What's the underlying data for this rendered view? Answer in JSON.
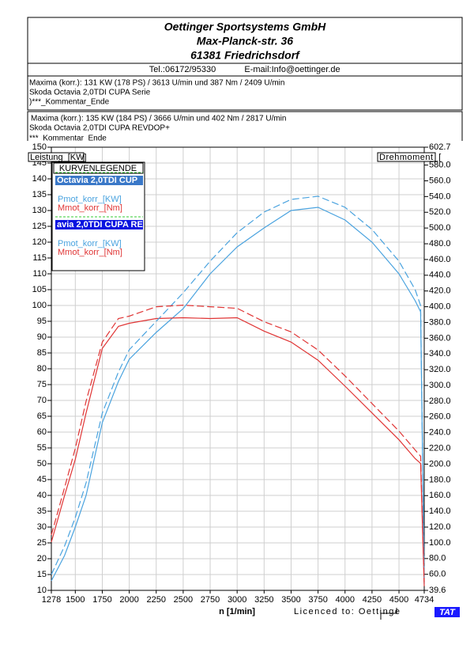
{
  "header": {
    "company": "Oettinger Sportsystems GmbH",
    "street": "Max-Planck-str. 36",
    "city": "61381 Friedrichsdorf",
    "phone": "Tel.:06172/95330",
    "email": "E-mail:Info@oettinger.de"
  },
  "runs": [
    {
      "maxima": "Maxima (korr.):  131 KW (178 PS) /  3613 U/min  und   387 Nm /  2409 U/min",
      "vehicle": "Skoda Octavia 2,0TDI CUPA Serie",
      "comment": ")***_Kommentar_Ende"
    },
    {
      "maxima": "Maxima (korr.):  135 KW (184 PS) /  3666 U/min  und   402 Nm /  2817 U/min",
      "vehicle": "Skoda Octavia 2,0TDI CUPA REVDOP+",
      "comment": "***_Kommentar_Ende"
    }
  ],
  "footer": {
    "licence": "Licenced to: Oettinge",
    "badge": "TAT"
  },
  "chart_data": {
    "type": "line",
    "y_label": "Leistung_[KW]",
    "y2_label": "Drehmoment_[",
    "x_label": "n  [1/min]",
    "legend_title": "KURVENLEGENDE",
    "x": [
      1278,
      1400,
      1500,
      1600,
      1750,
      1900,
      2000,
      2250,
      2500,
      2750,
      3000,
      3250,
      3500,
      3750,
      4000,
      4250,
      4500,
      4650,
      4700,
      4734
    ],
    "xlim": [
      1278,
      4734
    ],
    "xticks": [
      1278,
      1500,
      1750,
      2000,
      2250,
      2500,
      2750,
      3000,
      3250,
      3500,
      3750,
      4000,
      4250,
      4500,
      4734
    ],
    "ylim": [
      10,
      150
    ],
    "yticks": [
      10,
      15,
      20,
      25,
      30,
      35,
      40,
      45,
      50,
      55,
      60,
      65,
      70,
      75,
      80,
      85,
      90,
      95,
      100,
      105,
      110,
      115,
      120,
      125,
      130,
      135,
      140,
      145,
      150
    ],
    "y2lim": [
      39.6,
      602.7
    ],
    "y2ticks": [
      39.6,
      {
        "value": 60,
        "label": "60.0"
      },
      {
        "value": 80,
        "label": "80.0"
      },
      {
        "value": 100,
        "label": "100.0"
      },
      {
        "value": 120,
        "label": "120.0"
      },
      {
        "value": 140,
        "label": "140.0"
      },
      {
        "value": 160,
        "label": "160.0"
      },
      {
        "value": 180,
        "label": "180.0"
      },
      {
        "value": 200,
        "label": "200.0"
      },
      {
        "value": 220,
        "label": "220.0"
      },
      {
        "value": 240,
        "label": "240.0"
      },
      {
        "value": 260,
        "label": "260.0"
      },
      {
        "value": 280,
        "label": "280.0"
      },
      {
        "value": 300,
        "label": "300.0"
      },
      {
        "value": 320,
        "label": "320.0"
      },
      {
        "value": 340,
        "label": "340.0"
      },
      {
        "value": 360,
        "label": "360.0"
      },
      {
        "value": 380,
        "label": "380.0"
      },
      {
        "value": 400,
        "label": "400.0"
      },
      {
        "value": 420,
        "label": "420.0"
      },
      {
        "value": 440,
        "label": "440.0"
      },
      {
        "value": 460,
        "label": "460.0"
      },
      {
        "value": 480,
        "label": "480.0"
      },
      {
        "value": 500,
        "label": "500.0"
      },
      {
        "value": 520,
        "label": "520.0"
      },
      {
        "value": 540,
        "label": "540.0"
      },
      {
        "value": 560,
        "label": "560.0"
      },
      {
        "value": 580,
        "label": "580.0"
      },
      602.7
    ],
    "grid": true,
    "series": [
      {
        "group": "Octavia 2,0TDI CUP",
        "name": "Pmot_korr_[KW]",
        "color": "#4aa3df",
        "dashed": false,
        "values": [
          13,
          21,
          30,
          40,
          63,
          76,
          83,
          91.5,
          99,
          110,
          118.5,
          124.5,
          130,
          131,
          127,
          120,
          110,
          101.5,
          98,
          12
        ]
      },
      {
        "group": "Octavia 2,0TDI CUP",
        "name": "Mmot_korr_[Nm]",
        "color": "#e03535",
        "dashed": false,
        "axis": "y2",
        "values": [
          101,
          160,
          206,
          265,
          347,
          375,
          379,
          385,
          386,
          385,
          386,
          369,
          355,
          332,
          299,
          265,
          231,
          207,
          201,
          45
        ]
      },
      {
        "group": "avia 2,0TDI CUPA RE",
        "name": "Pmot_korr_[KW]",
        "color": "#4aa3df",
        "dashed": true,
        "values": [
          15,
          24,
          33,
          44,
          66,
          79,
          86,
          95,
          104,
          114,
          123,
          129.5,
          133.5,
          134.5,
          131,
          124,
          114,
          105,
          100,
          14
        ]
      },
      {
        "group": "avia 2,0TDI CUPA RE",
        "name": "Mmot_korr_[Nm]",
        "color": "#e03535",
        "dashed": true,
        "axis": "y2",
        "values": [
          110,
          170,
          220,
          280,
          355,
          385,
          388,
          400,
          402,
          400,
          398,
          381,
          368,
          345,
          312,
          277,
          242,
          218,
          210,
          50
        ]
      }
    ]
  }
}
